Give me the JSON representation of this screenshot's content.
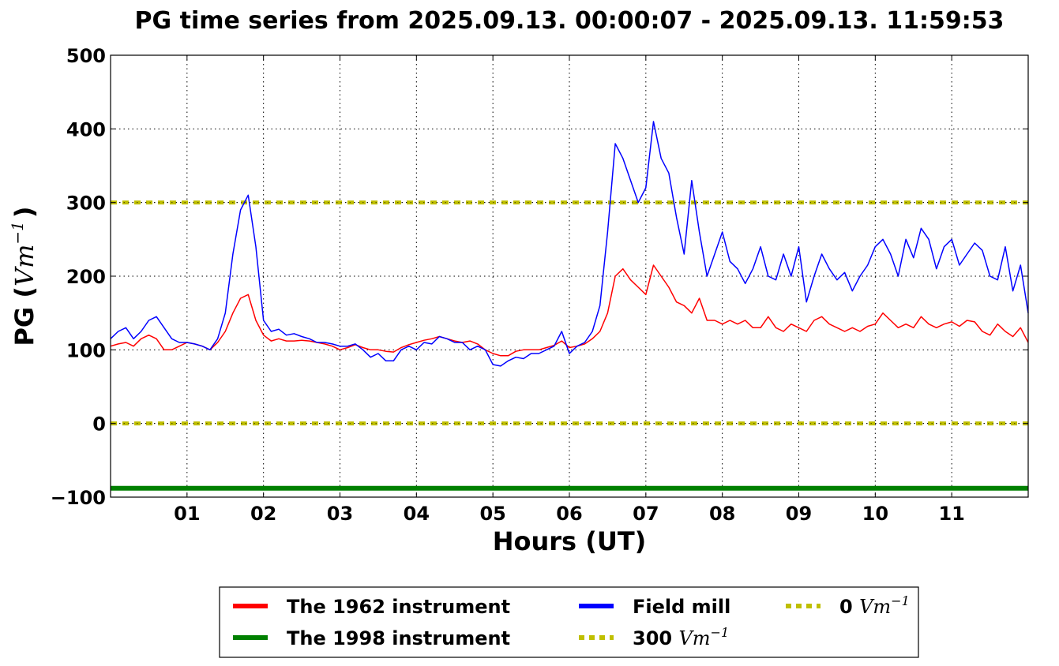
{
  "chart_data": {
    "type": "line",
    "title": "PG time series from 2025.09.13. 00:00:07 - 2025.09.13. 11:59:53",
    "xlabel": "Hours (UT)",
    "ylabel": {
      "text": "PG (",
      "unit": "Vm",
      "exp": "−1",
      "close": ")"
    },
    "xlim": [
      0,
      12
    ],
    "ylim": [
      -100,
      500
    ],
    "grid": true,
    "legend_placement": "below",
    "x_ticks": [
      {
        "value": 1,
        "label": "01"
      },
      {
        "value": 2,
        "label": "02"
      },
      {
        "value": 3,
        "label": "03"
      },
      {
        "value": 4,
        "label": "04"
      },
      {
        "value": 5,
        "label": "05"
      },
      {
        "value": 6,
        "label": "06"
      },
      {
        "value": 7,
        "label": "07"
      },
      {
        "value": 8,
        "label": "08"
      },
      {
        "value": 9,
        "label": "09"
      },
      {
        "value": 10,
        "label": "10"
      },
      {
        "value": 11,
        "label": "11"
      }
    ],
    "y_ticks": [
      {
        "value": -100,
        "label": "−100"
      },
      {
        "value": 0,
        "label": "0"
      },
      {
        "value": 100,
        "label": "100"
      },
      {
        "value": 200,
        "label": "200"
      },
      {
        "value": 300,
        "label": "300"
      },
      {
        "value": 400,
        "label": "400"
      },
      {
        "value": 500,
        "label": "500"
      }
    ],
    "x_step_hours": 0.1,
    "series": [
      {
        "name": "The 1962 instrument",
        "color": "#ff0000",
        "style": "solid",
        "values": [
          105,
          108,
          110,
          105,
          115,
          120,
          115,
          100,
          100,
          105,
          110,
          108,
          105,
          100,
          110,
          125,
          150,
          170,
          175,
          140,
          120,
          112,
          115,
          112,
          112,
          113,
          112,
          110,
          108,
          105,
          100,
          103,
          107,
          103,
          100,
          100,
          98,
          97,
          103,
          107,
          110,
          113,
          115,
          118,
          115,
          112,
          110,
          112,
          108,
          100,
          95,
          92,
          92,
          98,
          100,
          100,
          100,
          103,
          106,
          112,
          103,
          105,
          108,
          115,
          125,
          150,
          200,
          210,
          195,
          185,
          175,
          215,
          200,
          185,
          165,
          160,
          150,
          170,
          140,
          140,
          135,
          140,
          135,
          140,
          130,
          130,
          145,
          130,
          125,
          135,
          130,
          125,
          140,
          145,
          135,
          130,
          125,
          130,
          125,
          132,
          135,
          150,
          140,
          130,
          135,
          130,
          145,
          135,
          130,
          135,
          138,
          132,
          140,
          138,
          125,
          120,
          135,
          125,
          118,
          130,
          110
        ]
      },
      {
        "name": "The 1998 instrument",
        "color": "#008000",
        "style": "solid",
        "constant": -88
      },
      {
        "name": "Field mill",
        "color": "#0000ff",
        "style": "solid",
        "values": [
          115,
          125,
          130,
          115,
          125,
          140,
          145,
          130,
          115,
          110,
          110,
          108,
          105,
          100,
          115,
          150,
          230,
          290,
          310,
          240,
          140,
          125,
          128,
          120,
          122,
          118,
          115,
          110,
          110,
          108,
          105,
          105,
          108,
          100,
          90,
          95,
          85,
          85,
          100,
          105,
          100,
          110,
          108,
          118,
          115,
          110,
          110,
          100,
          105,
          100,
          80,
          78,
          85,
          90,
          88,
          95,
          95,
          100,
          105,
          125,
          95,
          105,
          110,
          125,
          160,
          260,
          380,
          360,
          330,
          300,
          320,
          410,
          360,
          340,
          280,
          230,
          330,
          260,
          200,
          230,
          260,
          220,
          210,
          190,
          210,
          240,
          200,
          195,
          230,
          200,
          240,
          165,
          200,
          230,
          210,
          195,
          205,
          180,
          200,
          215,
          240,
          250,
          230,
          200,
          250,
          225,
          265,
          250,
          210,
          240,
          250,
          215,
          230,
          245,
          235,
          200,
          195,
          240,
          180,
          215,
          150
        ]
      },
      {
        "name": "300",
        "unit": "Vm",
        "exp": "−1",
        "color": "#bfbf00",
        "style": "dotted",
        "constant": 300
      },
      {
        "name": "0",
        "unit": "Vm",
        "exp": "−1",
        "color": "#bfbf00",
        "style": "dotted",
        "constant": 0
      }
    ]
  }
}
